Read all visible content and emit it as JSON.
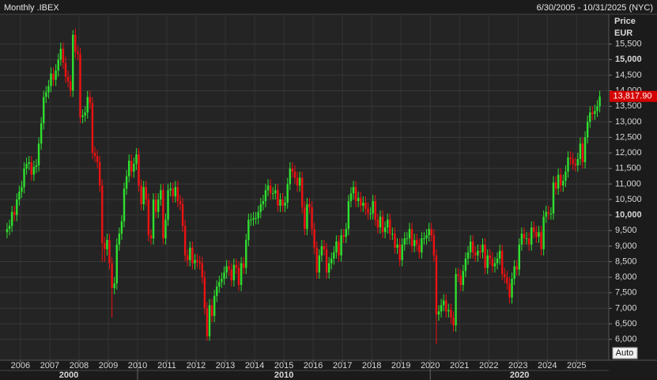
{
  "chart_data": {
    "type": "candlestick",
    "title": "Monthly .IBEX",
    "period": "6/30/2005 - 10/31/2025 (NYC)",
    "y_axis_title": "Price",
    "y_axis_unit": "EUR",
    "scale_button": "Auto",
    "up_color": "#2fe02f",
    "down_color": "#ee1111",
    "grid": true,
    "last_price": {
      "value": 13817.9,
      "label": "13,817.90"
    },
    "xlim": [
      2005.3,
      2026.1
    ],
    "xticks": [
      2006,
      2007,
      2008,
      2009,
      2010,
      2011,
      2012,
      2013,
      2014,
      2015,
      2016,
      2017,
      2018,
      2019,
      2020,
      2021,
      2022,
      2023,
      2024,
      2025
    ],
    "decades": [
      2000,
      2010,
      2020
    ],
    "ylim": [
      5330,
      16460
    ],
    "yticks": [
      {
        "value": 6000,
        "label": "6,000"
      },
      {
        "value": 6500,
        "label": "6,500"
      },
      {
        "value": 7000,
        "label": "7,000"
      },
      {
        "value": 7500,
        "label": "7,500"
      },
      {
        "value": 8000,
        "label": "8,000"
      },
      {
        "value": 8500,
        "label": "8,500"
      },
      {
        "value": 9000,
        "label": "9,000"
      },
      {
        "value": 9500,
        "label": "9,500"
      },
      {
        "value": 10000,
        "label": "10,000"
      },
      {
        "value": 10500,
        "label": "10,500"
      },
      {
        "value": 11000,
        "label": "11,000"
      },
      {
        "value": 11500,
        "label": "11,500"
      },
      {
        "value": 12000,
        "label": "12,000"
      },
      {
        "value": 12500,
        "label": "12,500"
      },
      {
        "value": 13000,
        "label": "13,000"
      },
      {
        "value": 13500,
        "label": "13,500"
      },
      {
        "value": 14000,
        "label": "14,000"
      },
      {
        "value": 14500,
        "label": "14,500"
      },
      {
        "value": 15000,
        "label": "15,000"
      },
      {
        "value": 15500,
        "label": "15,500"
      }
    ],
    "ohlc": {
      "open": [
        9450,
        9550,
        9650,
        10100,
        10000,
        10500,
        10750,
        10900,
        11500,
        11650,
        11700,
        11300,
        11550,
        11600,
        12300,
        12950,
        13800,
        13950,
        14150,
        14550,
        14350,
        14650,
        15000,
        15350,
        14900,
        14450,
        14300,
        14000,
        15800,
        15250,
        15180,
        13150,
        13200,
        13300,
        13800,
        13600,
        12000,
        11900,
        11700,
        10950,
        9100,
        8900,
        9200,
        8450,
        7650,
        7800,
        9050,
        9400,
        9800,
        10850,
        11250,
        11750,
        11400,
        11650,
        11950,
        10950,
        10350,
        10900,
        10500,
        9350,
        9250,
        10500,
        10100,
        10500,
        10800,
        9250,
        9850,
        10800,
        10850,
        10600,
        10900,
        10450,
        10350,
        9650,
        8700,
        8550,
        8950,
        8450,
        8550,
        8500,
        8450,
        8000,
        7000,
        6100,
        7100,
        6750,
        7400,
        7700,
        7850,
        7950,
        8150,
        8350,
        8250,
        7900,
        8400,
        8300,
        7750,
        8450,
        8300,
        9200,
        9850,
        9850,
        9900,
        9900,
        10100,
        10350,
        10450,
        10800,
        10950,
        10700,
        10700,
        10800,
        10300,
        10500,
        10300,
        10400,
        11000,
        11500,
        11400,
        11200,
        10950,
        11200,
        10250,
        9550,
        10350,
        10250,
        9550,
        8950,
        8150,
        8700,
        9000,
        8900,
        8150,
        8450,
        8600,
        8800,
        9150,
        8700,
        9350,
        9300,
        9550,
        10450,
        10700,
        10900,
        10450,
        10550,
        10300,
        10400,
        10200,
        10050,
        10050,
        10450,
        9850,
        9600,
        9950,
        9450,
        9600,
        9850,
        9400,
        9400,
        8950,
        9050,
        8550,
        9050,
        9250,
        9250,
        9550,
        9000,
        9200,
        9050,
        8800,
        9250,
        9250,
        9350,
        9550,
        9350,
        8700,
        6800,
        6900,
        7100,
        7250,
        6900,
        6950,
        6700,
        6450,
        8100,
        8050,
        7750,
        8200,
        8600,
        8800,
        9150,
        8800,
        8700,
        8850,
        8800,
        9050,
        8300,
        8700,
        8600,
        8350,
        8450,
        8600,
        8850,
        8100,
        8000,
        7800,
        7350,
        7950,
        8350,
        8250,
        9050,
        9400,
        9250,
        9250,
        9050,
        9600,
        9450,
        9300,
        9450,
        8900,
        9950,
        10100,
        10050,
        10050,
        11050,
        10850,
        11300,
        10950,
        11100,
        11400,
        11850,
        11800,
        11650,
        11600,
        11800,
        12300,
        11700,
        12500,
        13000,
        13300,
        13250,
        13350,
        13500
      ],
      "high": [
        9750,
        9850,
        10300,
        10300,
        10700,
        10950,
        11100,
        11700,
        11850,
        11900,
        11900,
        11750,
        11800,
        12500,
        13150,
        14000,
        14150,
        14350,
        14750,
        14750,
        14850,
        15200,
        15550,
        15550,
        15100,
        14650,
        14500,
        15950,
        16000,
        15450,
        15380,
        13400,
        13500,
        14000,
        14000,
        13800,
        12200,
        12100,
        11900,
        11150,
        9300,
        9400,
        9400,
        8650,
        8000,
        9250,
        9600,
        10000,
        11050,
        11450,
        11950,
        11950,
        11850,
        12150,
        12150,
        11150,
        11100,
        11100,
        10700,
        9550,
        10700,
        10700,
        10700,
        11000,
        11000,
        10050,
        11000,
        11050,
        11050,
        11100,
        11100,
        10650,
        10550,
        9850,
        8900,
        9150,
        9150,
        8750,
        8750,
        8700,
        8650,
        8200,
        7200,
        7300,
        7300,
        7600,
        7900,
        8050,
        8150,
        8350,
        8550,
        8550,
        8450,
        8600,
        8600,
        8500,
        8650,
        8650,
        9400,
        10050,
        10050,
        10100,
        10100,
        10300,
        10550,
        10650,
        11000,
        11150,
        11150,
        10900,
        11000,
        11000,
        10700,
        10700,
        10600,
        11200,
        11700,
        11700,
        11600,
        11400,
        11400,
        11400,
        10450,
        10550,
        10550,
        10450,
        9750,
        9150,
        8900,
        9200,
        9200,
        9100,
        8650,
        8800,
        9000,
        9350,
        9350,
        9550,
        9550,
        9750,
        10650,
        10900,
        11100,
        11100,
        10750,
        10750,
        10600,
        10600,
        10400,
        10250,
        10650,
        10650,
        10050,
        10150,
        10150,
        9800,
        10050,
        10050,
        9600,
        9600,
        9250,
        9250,
        9250,
        9450,
        9450,
        9750,
        9750,
        9400,
        9400,
        9250,
        9450,
        9450,
        9550,
        9750,
        9750,
        9550,
        8900,
        7100,
        7300,
        7450,
        7450,
        7150,
        7150,
        6900,
        8300,
        8300,
        8250,
        8400,
        8800,
        9000,
        9350,
        9350,
        9000,
        9050,
        9050,
        9250,
        9250,
        8900,
        8900,
        8800,
        8650,
        8800,
        9050,
        9050,
        8300,
        8200,
        8000,
        8150,
        8550,
        8550,
        9250,
        9600,
        9600,
        9450,
        9450,
        9800,
        9800,
        9650,
        9650,
        9650,
        10150,
        10300,
        10300,
        10250,
        11250,
        11250,
        11500,
        11500,
        11300,
        11600,
        12050,
        12050,
        12000,
        11850,
        12000,
        12500,
        12500,
        12700,
        13200,
        13500,
        13500,
        13550,
        13700,
        14000
      ],
      "low": [
        9250,
        9350,
        9450,
        9800,
        9800,
        10300,
        10550,
        10700,
        11300,
        11450,
        11100,
        11100,
        11350,
        11400,
        12100,
        12750,
        13600,
        13750,
        13950,
        14150,
        14150,
        14450,
        14800,
        14700,
        14250,
        14100,
        13800,
        13800,
        15050,
        14980,
        12950,
        12950,
        13000,
        13100,
        13400,
        11800,
        11700,
        11500,
        10750,
        8500,
        8500,
        8700,
        8250,
        6700,
        7450,
        7600,
        8850,
        9200,
        9600,
        10650,
        11050,
        11200,
        11200,
        11450,
        10750,
        10150,
        10150,
        10300,
        9150,
        9050,
        9050,
        9900,
        9900,
        10300,
        9050,
        9050,
        9650,
        10600,
        10400,
        10400,
        10250,
        10150,
        9450,
        8500,
        8350,
        8350,
        8250,
        8250,
        8300,
        8250,
        7800,
        6800,
        5950,
        5950,
        6550,
        6550,
        7200,
        7500,
        7650,
        7750,
        7950,
        8050,
        7700,
        7700,
        8100,
        7550,
        7550,
        8100,
        8100,
        9000,
        9650,
        9650,
        9700,
        9700,
        9900,
        10150,
        10250,
        10600,
        10500,
        10500,
        10500,
        10100,
        10100,
        10100,
        10100,
        10200,
        10800,
        11200,
        11000,
        10750,
        10750,
        10050,
        9350,
        9350,
        10050,
        9350,
        8750,
        7950,
        7950,
        8500,
        8700,
        7950,
        7950,
        8250,
        8400,
        8600,
        8500,
        8500,
        9100,
        9100,
        9350,
        10250,
        10500,
        10250,
        10250,
        10100,
        10100,
        10000,
        9850,
        9850,
        9850,
        9650,
        9400,
        9400,
        9250,
        9250,
        9400,
        9200,
        9200,
        8750,
        8750,
        8350,
        8350,
        8850,
        9050,
        9050,
        8800,
        8800,
        8850,
        8600,
        8600,
        9050,
        9050,
        9150,
        9150,
        8500,
        5850,
        6600,
        6700,
        6900,
        6700,
        6700,
        6500,
        6250,
        6250,
        7850,
        7550,
        7550,
        8000,
        8400,
        8600,
        8600,
        8500,
        8500,
        8600,
        8600,
        8100,
        8100,
        8400,
        8150,
        8150,
        8250,
        8400,
        7900,
        7800,
        7600,
        7150,
        7150,
        7750,
        8050,
        8050,
        8850,
        9050,
        9050,
        8850,
        8850,
        9250,
        9100,
        9100,
        8700,
        8700,
        9750,
        9850,
        9850,
        9850,
        10650,
        10650,
        10750,
        10750,
        10900,
        11200,
        11600,
        11450,
        11400,
        11400,
        11600,
        11500,
        11500,
        12300,
        12800,
        13050,
        13050,
        13150,
        13300
      ],
      "close": [
        9550,
        9650,
        10100,
        10000,
        10500,
        10750,
        10900,
        11500,
        11650,
        11700,
        11300,
        11550,
        11600,
        12300,
        12950,
        13800,
        13950,
        14150,
        14550,
        14350,
        14650,
        15000,
        15350,
        14900,
        14450,
        14300,
        14000,
        15800,
        15250,
        15180,
        13150,
        13200,
        13300,
        13800,
        13600,
        12000,
        11900,
        11700,
        10950,
        9100,
        8900,
        9200,
        8450,
        7650,
        7800,
        9050,
        9400,
        9800,
        10850,
        11250,
        11750,
        11400,
        11650,
        11950,
        10950,
        10350,
        10900,
        10500,
        9350,
        9250,
        10500,
        10100,
        10500,
        10800,
        9250,
        9850,
        10800,
        10850,
        10600,
        10900,
        10450,
        10350,
        9650,
        8700,
        8550,
        8950,
        8450,
        8550,
        8500,
        8450,
        8000,
        7000,
        6100,
        7100,
        6750,
        7400,
        7700,
        7850,
        7950,
        8150,
        8350,
        8250,
        7900,
        8400,
        8300,
        7750,
        8450,
        8300,
        9200,
        9850,
        9850,
        9900,
        9900,
        10100,
        10350,
        10450,
        10800,
        10950,
        10700,
        10700,
        10800,
        10300,
        10500,
        10300,
        10400,
        11000,
        11500,
        11400,
        11200,
        10950,
        11200,
        10250,
        9550,
        10350,
        10250,
        9550,
        8950,
        8150,
        8700,
        9000,
        8900,
        8150,
        8450,
        8600,
        8800,
        9150,
        8700,
        9350,
        9300,
        9550,
        10450,
        10700,
        10900,
        10450,
        10550,
        10300,
        10400,
        10200,
        10050,
        10050,
        10450,
        9850,
        9600,
        9950,
        9450,
        9600,
        9850,
        9400,
        9400,
        8950,
        9050,
        8550,
        9050,
        9250,
        9250,
        9550,
        9000,
        9200,
        9050,
        8800,
        9250,
        9250,
        9350,
        9550,
        9350,
        8700,
        6800,
        6900,
        7100,
        7250,
        6900,
        6950,
        6700,
        6450,
        8100,
        8050,
        7750,
        8200,
        8600,
        8800,
        9150,
        8800,
        8700,
        8850,
        8800,
        9050,
        8300,
        8700,
        8600,
        8350,
        8450,
        8600,
        8850,
        8100,
        8000,
        7800,
        7350,
        7950,
        8350,
        8250,
        9050,
        9400,
        9250,
        9250,
        9050,
        9600,
        9450,
        9300,
        9450,
        8900,
        9950,
        10100,
        10050,
        10050,
        11050,
        10850,
        11300,
        10950,
        11100,
        11400,
        11850,
        11800,
        11650,
        11600,
        11800,
        12300,
        11700,
        12500,
        13000,
        13300,
        13250,
        13350,
        13500,
        13817.9
      ]
    }
  }
}
